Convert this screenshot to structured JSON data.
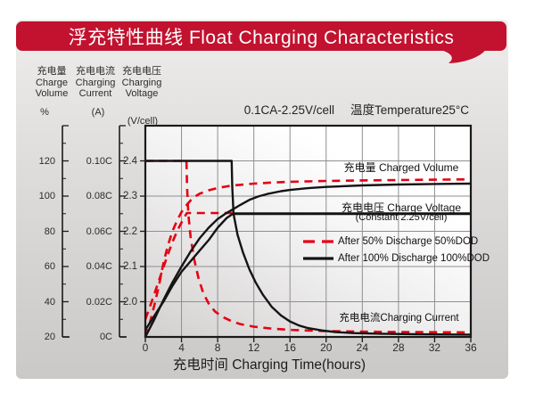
{
  "title": "浮充特性曲线 Float Charging Characteristics",
  "header": {
    "axis_titles": [
      {
        "cn": "充电量",
        "en1": "Charge",
        "en2": "Volume",
        "unit": "%"
      },
      {
        "cn": "充电电流",
        "en1": "Charging",
        "en2": "Current",
        "unit": "(A)"
      },
      {
        "cn": "充电电压",
        "en1": "Charging",
        "en2": "Voltage",
        "unit": "(V/cell)"
      }
    ],
    "condition_left": "0.1CA-2.25V/cell",
    "condition_right": "温度Temperature25°C"
  },
  "annotations": {
    "charged_volume": "充电量 Charged Volume",
    "charge_voltage": "充电电压 Charge Voltage",
    "charge_voltage_sub": "(Constant 2.25V/cell)",
    "charging_current": "充电电流Charging Current"
  },
  "legend": [
    {
      "label": "After 50% Discharge 50%DOD",
      "style": "dashed",
      "color": "#e60012"
    },
    {
      "label": "After 100%  Discharge 100%DOD",
      "style": "solid",
      "color": "#141414"
    }
  ],
  "colors": {
    "banner": "#c2122f",
    "curve_red": "#e60012",
    "curve_black": "#141414",
    "grid": "#8f8f8f",
    "border": "#1a1a1a"
  },
  "chart_data": {
    "type": "line",
    "title": "浮充特性曲线 Float Charging Characteristics",
    "condition": "0.1CA-2.25V/cell, 温度Temperature 25°C",
    "x_axis": {
      "label": "充电时间 Charging Time(hours)",
      "unit": "hours",
      "range": [
        0,
        36
      ],
      "ticks": [
        0,
        4,
        8,
        12,
        16,
        20,
        24,
        28,
        32,
        36
      ]
    },
    "y_axes": {
      "volume": {
        "label": "充电量 Charge Volume",
        "unit": "%",
        "range": [
          20,
          140
        ],
        "ticks": [
          20,
          40,
          60,
          80,
          100,
          120
        ],
        "tick_labels": [
          "20",
          "40",
          "60",
          "80",
          "100",
          "120"
        ]
      },
      "current": {
        "label": "充电电流 Charging Current",
        "unit": "A (C-rate)",
        "range": [
          0,
          0.12
        ],
        "ticks": [
          0,
          0.02,
          0.04,
          0.06,
          0.08,
          0.1
        ],
        "tick_labels": [
          "0C",
          "0.02C",
          "0.04C",
          "0.06C",
          "0.08C",
          "0.10C"
        ]
      },
      "voltage": {
        "label": "充电电压 Charging Voltage",
        "unit": "V/cell",
        "range": [
          1.9,
          2.5
        ],
        "ticks": [
          2.0,
          2.1,
          2.2,
          2.3,
          2.4
        ],
        "tick_labels": [
          "2.0",
          "2.1",
          "2.2",
          "2.3",
          "2.4"
        ]
      }
    },
    "grid": {
      "x_step_hours": 4,
      "voltage_step": 0.1
    },
    "series": [
      {
        "name": "charging-current-50dod",
        "legend": "After 50% Discharge 50%DOD",
        "axis": "current",
        "style": "dashed",
        "color": "#e60012",
        "width": 2.6,
        "points": [
          [
            0,
            0.1
          ],
          [
            4.55,
            0.1
          ],
          [
            4.62,
            0.085
          ],
          [
            4.75,
            0.07
          ],
          [
            5,
            0.057
          ],
          [
            5.4,
            0.044
          ],
          [
            5.9,
            0.033
          ],
          [
            6.4,
            0.025
          ],
          [
            7,
            0.019
          ],
          [
            7.7,
            0.0145
          ],
          [
            8.5,
            0.0115
          ],
          [
            9.5,
            0.009
          ],
          [
            10.5,
            0.0073
          ],
          [
            12,
            0.0058
          ],
          [
            14,
            0.0047
          ],
          [
            16,
            0.004
          ],
          [
            20,
            0.0033
          ],
          [
            24,
            0.003
          ],
          [
            28,
            0.0028
          ],
          [
            32,
            0.0027
          ],
          [
            36,
            0.0026
          ]
        ]
      },
      {
        "name": "charge-voltage-50dod",
        "legend": "After 50% Discharge 50%DOD",
        "axis": "voltage",
        "style": "dashed",
        "color": "#e60012",
        "width": 2.6,
        "points": [
          [
            0,
            1.95
          ],
          [
            0.7,
            2.0
          ],
          [
            1.5,
            2.06
          ],
          [
            2.3,
            2.12
          ],
          [
            3,
            2.17
          ],
          [
            3.6,
            2.205
          ],
          [
            4.2,
            2.235
          ],
          [
            4.6,
            2.252
          ],
          [
            9.7,
            2.252
          ]
        ]
      },
      {
        "name": "charged-volume-50dod",
        "legend": "After 50% Discharge 50%DOD",
        "axis": "volume",
        "style": "dashed",
        "color": "#e60012",
        "width": 2.6,
        "points": [
          [
            0,
            20
          ],
          [
            0.5,
            28
          ],
          [
            1,
            38
          ],
          [
            1.5,
            49
          ],
          [
            2,
            62
          ],
          [
            2.5,
            72
          ],
          [
            3,
            80
          ],
          [
            3.5,
            86
          ],
          [
            4,
            91
          ],
          [
            4.5,
            94.5
          ],
          [
            5,
            97.5
          ],
          [
            5.5,
            99.8
          ],
          [
            6,
            101.3
          ],
          [
            7,
            103.3
          ],
          [
            8,
            104.6
          ],
          [
            9,
            105.5
          ],
          [
            10,
            106.2
          ],
          [
            12,
            107.1
          ],
          [
            14,
            107.7
          ],
          [
            16,
            108.1
          ],
          [
            20,
            108.6
          ],
          [
            24,
            108.9
          ],
          [
            28,
            109.1
          ],
          [
            32,
            109.3
          ],
          [
            36,
            109.5
          ]
        ]
      },
      {
        "name": "charging-current-100dod",
        "legend": "After 100% Discharge 100%DOD",
        "axis": "current",
        "style": "solid",
        "color": "#141414",
        "width": 2.4,
        "points": [
          [
            0,
            0.1
          ],
          [
            9.55,
            0.1
          ],
          [
            9.62,
            0.085
          ],
          [
            9.75,
            0.07
          ],
          [
            10.2,
            0.058
          ],
          [
            10.8,
            0.048
          ],
          [
            11.5,
            0.0385
          ],
          [
            12.2,
            0.031
          ],
          [
            13,
            0.024
          ],
          [
            14,
            0.017
          ],
          [
            15,
            0.0122
          ],
          [
            16,
            0.0088
          ],
          [
            17,
            0.0065
          ],
          [
            18,
            0.005
          ],
          [
            19.5,
            0.0037
          ],
          [
            21,
            0.0028
          ],
          [
            23,
            0.0022
          ],
          [
            26,
            0.0018
          ],
          [
            30,
            0.0015
          ],
          [
            36,
            0.0013
          ]
        ]
      },
      {
        "name": "charge-voltage-100dod",
        "legend": "After 100% Discharge 100%DOD",
        "axis": "voltage",
        "style": "solid",
        "color": "#141414",
        "width": 2.4,
        "points": [
          [
            0,
            1.92
          ],
          [
            1,
            1.96
          ],
          [
            2,
            2.0
          ],
          [
            3,
            2.045
          ],
          [
            4,
            2.085
          ],
          [
            5,
            2.115
          ],
          [
            6,
            2.145
          ],
          [
            7,
            2.175
          ],
          [
            8,
            2.21
          ],
          [
            9,
            2.238
          ],
          [
            9.7,
            2.25
          ]
        ]
      },
      {
        "name": "charged-volume-100dod",
        "legend": "After 100% Discharge 100%DOD",
        "axis": "volume",
        "style": "solid",
        "color": "#141414",
        "width": 2.4,
        "points": [
          [
            0,
            20
          ],
          [
            1,
            30
          ],
          [
            2,
            41
          ],
          [
            3,
            51
          ],
          [
            4,
            60
          ],
          [
            5,
            68.5
          ],
          [
            6,
            76
          ],
          [
            7,
            82
          ],
          [
            8,
            87
          ],
          [
            9,
            90.5
          ],
          [
            9.7,
            92.5
          ],
          [
            10.5,
            95
          ],
          [
            11.5,
            97.8
          ],
          [
            12.5,
            99.8
          ],
          [
            13.5,
            101.2
          ],
          [
            15,
            102.8
          ],
          [
            16,
            103.5
          ],
          [
            18,
            104.5
          ],
          [
            20,
            105.2
          ],
          [
            24,
            106.1
          ],
          [
            28,
            106.6
          ],
          [
            32,
            106.9
          ],
          [
            36,
            107.1
          ]
        ]
      },
      {
        "name": "constant-float-voltage",
        "legend": "Constant 2.25V/cell",
        "axis": "voltage",
        "style": "solid",
        "color": "#141414",
        "width": 3,
        "points": [
          [
            9.7,
            2.25
          ],
          [
            36,
            2.25
          ]
        ]
      }
    ]
  }
}
